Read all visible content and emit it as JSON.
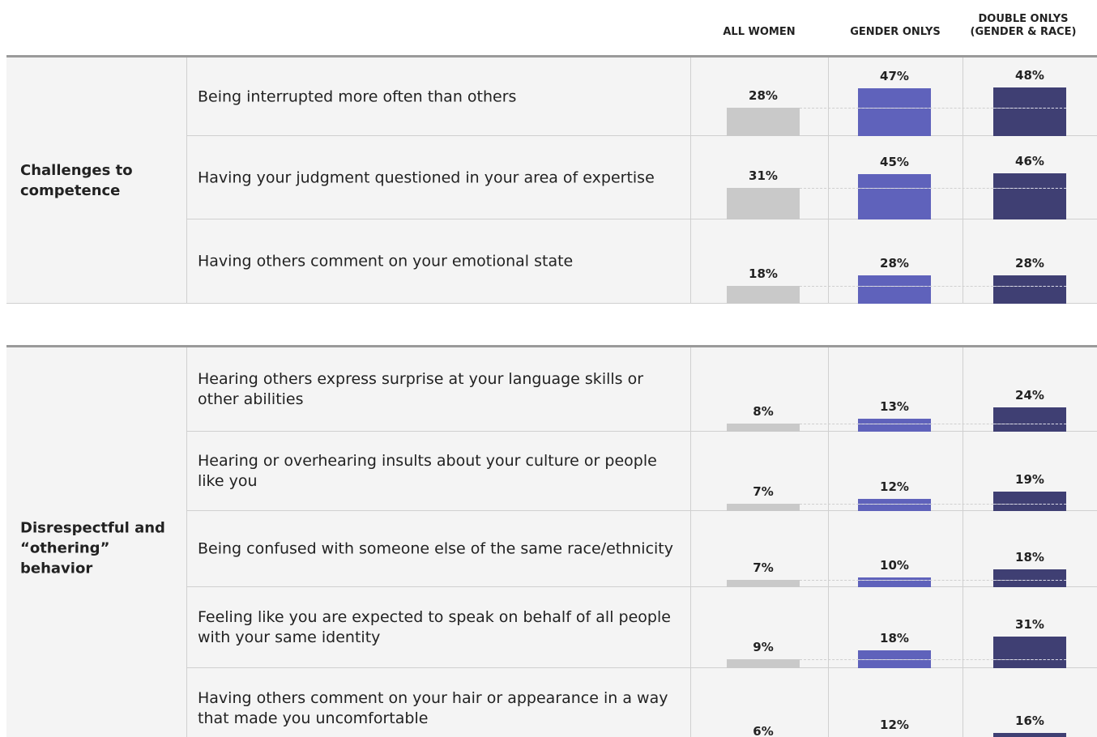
{
  "chart_data": {
    "type": "bar",
    "series": [
      {
        "name": "ALL WOMEN",
        "color": "#c9c9c9"
      },
      {
        "name": "GENDER ONLYS",
        "color": "#5f62bb"
      },
      {
        "name": "DOUBLE ONLYS (GENDER & RACE)",
        "color": "#3f3f73"
      }
    ],
    "groups": [
      {
        "name": "Challenges to competence",
        "rows": [
          {
            "label": "Being interrupted more often than others",
            "values": [
              28,
              47,
              48
            ],
            "value_labels": [
              "28%",
              "47%",
              "48%"
            ]
          },
          {
            "label": "Having your judgment questioned in your area of expertise",
            "values": [
              31,
              45,
              46
            ],
            "value_labels": [
              "31%",
              "45%",
              "46%"
            ]
          },
          {
            "label": "Having others comment on your emotional state",
            "values": [
              18,
              28,
              28
            ],
            "value_labels": [
              "18%",
              "28%",
              "28%"
            ]
          }
        ]
      },
      {
        "name": "Disrespectful and “othering” behavior",
        "rows": [
          {
            "label": "Hearing others express surprise at your language skills or other abilities",
            "values": [
              8,
              13,
              24
            ],
            "value_labels": [
              "8%",
              "13%",
              "24%"
            ]
          },
          {
            "label": "Hearing or overhearing insults about your culture or people like you",
            "values": [
              7,
              12,
              19
            ],
            "value_labels": [
              "7%",
              "12%",
              "19%"
            ]
          },
          {
            "label": "Being confused with someone else of the same race/ethnicity",
            "values": [
              7,
              10,
              18
            ],
            "value_labels": [
              "7%",
              "10%",
              "18%"
            ]
          },
          {
            "label": "Feeling like you are expected to speak on behalf of all people with your same identity",
            "values": [
              9,
              18,
              31
            ],
            "value_labels": [
              "9%",
              "18%",
              "31%"
            ]
          },
          {
            "label": "Having others comment on your hair or appearance in a way that made you uncomfortable",
            "values": [
              6,
              12,
              16
            ],
            "value_labels": [
              "6%",
              "12%",
              "16%"
            ]
          }
        ]
      }
    ]
  }
}
